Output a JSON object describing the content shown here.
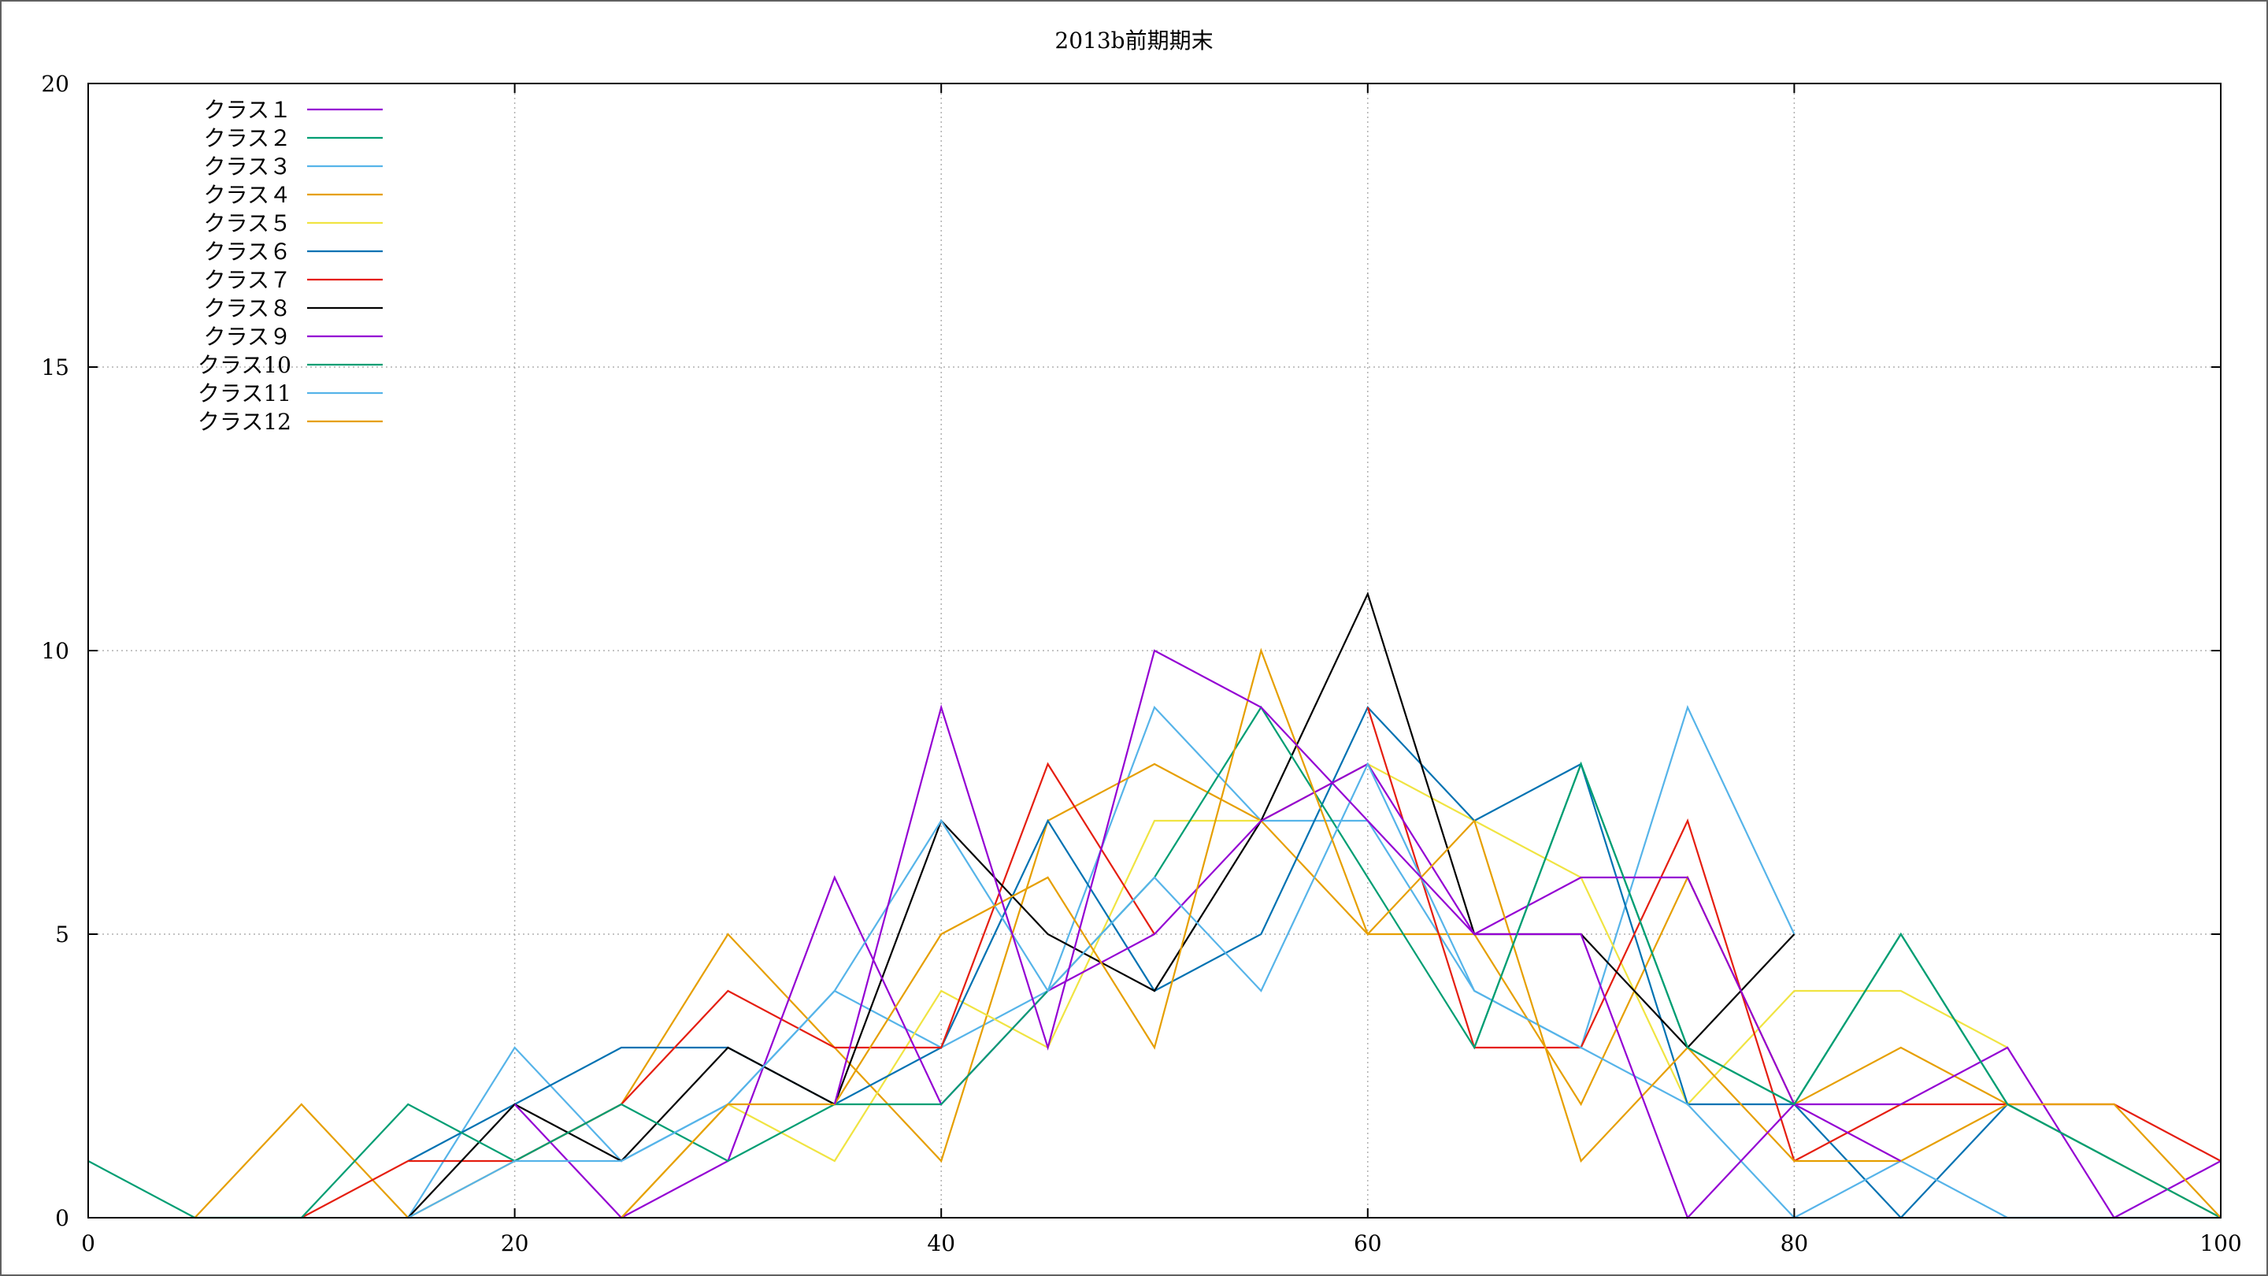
{
  "chart_data": {
    "type": "line",
    "title": "2013b前期期末",
    "xlabel": "",
    "ylabel": "",
    "xlim": [
      0,
      100
    ],
    "ylim": [
      0,
      20
    ],
    "x_ticks": [
      0,
      20,
      40,
      60,
      80,
      100
    ],
    "y_ticks": [
      0,
      5,
      10,
      15,
      20
    ],
    "grid": true,
    "legend_position": "top-left",
    "x": [
      0,
      5,
      10,
      15,
      20,
      25,
      30,
      35,
      40,
      45,
      50,
      55,
      60,
      65,
      70,
      75,
      80,
      85,
      90,
      95,
      100
    ],
    "series": [
      {
        "name": "クラス１",
        "color": "#9400d3",
        "values": [
          null,
          null,
          null,
          null,
          null,
          null,
          null,
          null,
          null,
          null,
          null,
          null,
          null,
          null,
          null,
          null,
          null,
          null,
          null,
          null,
          null
        ]
      },
      {
        "name": "クラス２",
        "color": "#009e73",
        "values": [
          null,
          null,
          null,
          null,
          null,
          null,
          null,
          null,
          null,
          null,
          null,
          null,
          null,
          null,
          null,
          null,
          null,
          null,
          null,
          null,
          null
        ]
      },
      {
        "name": "クラス３",
        "color": "#56b4e9",
        "values": [
          null,
          null,
          null,
          0,
          3,
          1,
          2,
          4,
          3,
          4,
          9,
          7,
          7,
          4,
          3,
          9,
          5,
          null,
          null,
          null,
          null
        ]
      },
      {
        "name": "クラス４",
        "color": "#e69f00",
        "values": [
          null,
          0,
          2,
          0,
          1,
          2,
          5,
          3,
          1,
          7,
          8,
          7,
          5,
          5,
          2,
          6,
          2,
          3,
          2,
          1,
          0
        ]
      },
      {
        "name": "クラス５",
        "color": "#f0e442",
        "values": [
          null,
          null,
          null,
          null,
          null,
          0,
          2,
          1,
          4,
          3,
          7,
          7,
          8,
          7,
          6,
          2,
          4,
          4,
          3,
          null,
          null
        ]
      },
      {
        "name": "クラス６",
        "color": "#0072b2",
        "values": [
          null,
          null,
          null,
          1,
          2,
          3,
          3,
          2,
          3,
          7,
          4,
          5,
          9,
          7,
          8,
          2,
          2,
          0,
          2,
          null,
          null
        ]
      },
      {
        "name": "クラス７",
        "color": "#e51e10",
        "values": [
          null,
          null,
          0,
          1,
          1,
          2,
          4,
          3,
          3,
          8,
          5,
          null,
          9,
          3,
          3,
          7,
          1,
          2,
          2,
          2,
          1
        ]
      },
      {
        "name": "クラス８",
        "color": "#000000",
        "values": [
          null,
          null,
          null,
          0,
          2,
          1,
          3,
          2,
          7,
          5,
          4,
          7,
          11,
          5,
          5,
          3,
          5,
          null,
          null,
          null,
          null
        ]
      },
      {
        "name": "クラス９",
        "color": "#9400d3",
        "values": [
          null,
          null,
          null,
          null,
          2,
          0,
          1,
          6,
          2,
          4,
          5,
          7,
          8,
          5,
          6,
          6,
          2,
          2,
          3,
          0,
          1
        ]
      },
      {
        "name": "クラス10",
        "color": "#009e73",
        "values": [
          1,
          0,
          0,
          2,
          1,
          2,
          1,
          2,
          2,
          4,
          6,
          9,
          6,
          3,
          8,
          3,
          2,
          5,
          2,
          1,
          0
        ]
      },
      {
        "name": "クラス11",
        "color": "#56b4e9",
        "values": [
          null,
          null,
          null,
          0,
          1,
          1,
          2,
          4,
          7,
          4,
          6,
          4,
          8,
          4,
          3,
          2,
          0,
          1,
          0,
          0,
          0
        ]
      },
      {
        "name": "クラス12",
        "color": "#e69f00",
        "values": [
          null,
          null,
          null,
          null,
          null,
          0,
          2,
          2,
          5,
          6,
          3,
          10,
          5,
          7,
          1,
          3,
          1,
          1,
          2,
          2,
          0
        ]
      }
    ],
    "extra_segments": [
      {
        "series": 0,
        "points": [
          [
            35,
            2
          ],
          [
            40,
            9
          ],
          [
            45,
            3
          ],
          [
            50,
            10
          ],
          [
            55,
            9
          ],
          [
            60,
            7
          ],
          [
            65,
            5
          ],
          [
            70,
            5
          ],
          [
            75,
            0
          ],
          [
            80,
            2
          ],
          [
            85,
            1
          ]
        ]
      },
      {
        "series": 1,
        "points": [
          [
            65,
            3
          ],
          [
            70,
            8
          ],
          [
            75,
            3
          ],
          [
            80,
            2
          ],
          [
            85,
            5
          ],
          [
            90,
            2
          ],
          [
            95,
            1
          ]
        ]
      }
    ]
  }
}
